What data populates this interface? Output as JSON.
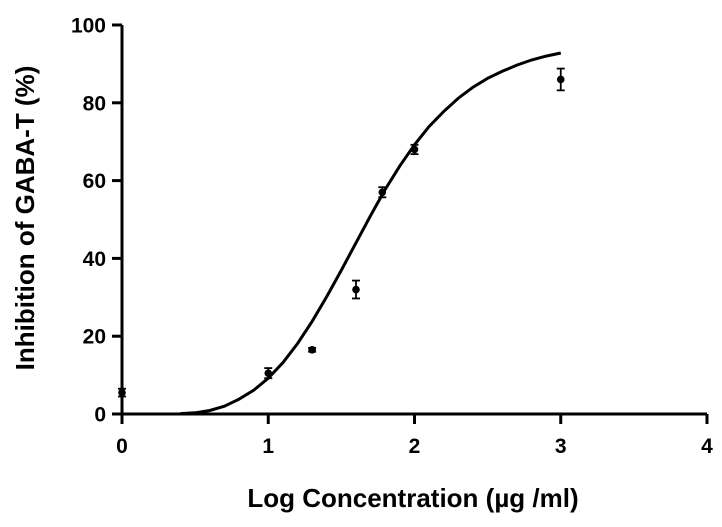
{
  "chart_data": {
    "type": "scatter",
    "title": "",
    "xlabel": "Log Concentration (µg /ml)",
    "ylabel": "Inhibition of GABA-T (%)",
    "xlim": [
      0,
      4
    ],
    "ylim": [
      0,
      100
    ],
    "x_ticks": [
      "0",
      "1",
      "2",
      "3",
      "4"
    ],
    "y_ticks": [
      "0",
      "20",
      "40",
      "60",
      "80",
      "100"
    ],
    "grid": false,
    "legend": "none",
    "series": [
      {
        "type": "scatter",
        "points": [
          {
            "x": 0,
            "y": 5.5,
            "err": 1.0
          },
          {
            "x": 1,
            "y": 10.5,
            "err": 1.3
          },
          {
            "x": 1.3,
            "y": 16.5,
            "err": 0.5
          },
          {
            "x": 1.6,
            "y": 32,
            "err": 2.3
          },
          {
            "x": 1.78,
            "y": 57,
            "err": 1.3
          },
          {
            "x": 2,
            "y": 68,
            "err": 1.2
          },
          {
            "x": 3,
            "y": 86,
            "err": 2.8
          }
        ]
      },
      {
        "type": "line",
        "fit": "sigmoid",
        "points": [
          {
            "x": 0.4,
            "y": 0.1
          },
          {
            "x": 0.5,
            "y": 0.3
          },
          {
            "x": 0.6,
            "y": 0.9
          },
          {
            "x": 0.7,
            "y": 2.0
          },
          {
            "x": 0.8,
            "y": 3.8
          },
          {
            "x": 0.9,
            "y": 6.1
          },
          {
            "x": 1.0,
            "y": 9.2
          },
          {
            "x": 1.1,
            "y": 13.2
          },
          {
            "x": 1.2,
            "y": 18.1
          },
          {
            "x": 1.3,
            "y": 23.8
          },
          {
            "x": 1.4,
            "y": 30.2
          },
          {
            "x": 1.5,
            "y": 37.0
          },
          {
            "x": 1.6,
            "y": 44.0
          },
          {
            "x": 1.7,
            "y": 51.0
          },
          {
            "x": 1.8,
            "y": 57.8
          },
          {
            "x": 1.9,
            "y": 63.8
          },
          {
            "x": 2.0,
            "y": 69.2
          },
          {
            "x": 2.1,
            "y": 73.9
          },
          {
            "x": 2.2,
            "y": 77.8
          },
          {
            "x": 2.3,
            "y": 81.2
          },
          {
            "x": 2.4,
            "y": 84.0
          },
          {
            "x": 2.5,
            "y": 86.3
          },
          {
            "x": 2.6,
            "y": 88.1
          },
          {
            "x": 2.7,
            "y": 89.7
          },
          {
            "x": 2.8,
            "y": 91.0
          },
          {
            "x": 2.9,
            "y": 92.0
          },
          {
            "x": 3.0,
            "y": 92.8
          }
        ]
      }
    ]
  }
}
